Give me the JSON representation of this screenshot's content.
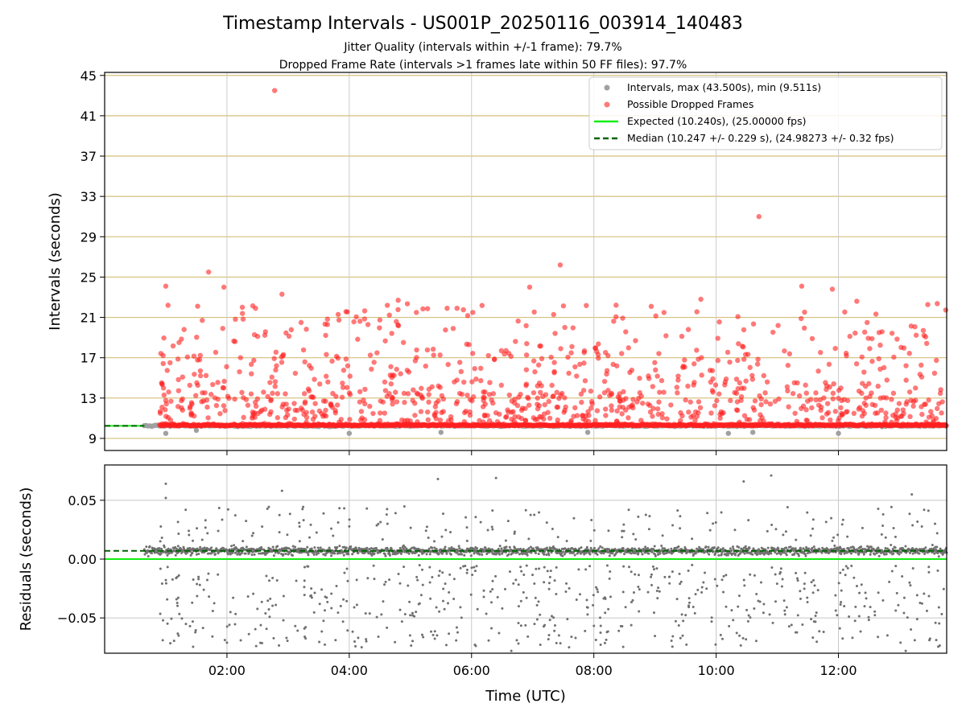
{
  "figure": {
    "title": "Timestamp Intervals - US001P_20250116_003914_140483",
    "subtitle_jitter": "Jitter Quality (intervals within +/-1 frame): 79.7%",
    "subtitle_dropped": "Dropped Frame Rate (intervals >1 frames late within 50 FF files): 97.7%"
  },
  "colors": {
    "intervals": "#a0a0a0",
    "dropped": "#ff2020",
    "expected": "#11ee11",
    "median": "#006400",
    "grid_top": "#d4bf7a",
    "grid_bottom": "#c8c8c8",
    "residuals": "#707070"
  },
  "chart_data": [
    {
      "type": "scatter",
      "panel": "top",
      "xlabel": "",
      "ylabel": "Intervals (seconds)",
      "xlim_hours": [
        0.0,
        13.77
      ],
      "ylim": [
        7.8,
        45.3
      ],
      "y_ticks": [
        "9",
        "13",
        "17",
        "21",
        "25",
        "29",
        "33",
        "37",
        "41",
        "45"
      ],
      "grid": true,
      "legend_position": "top-right",
      "legend": [
        {
          "label": "Intervals, max (43.500s), min (9.511s)",
          "marker": "circle",
          "color": "#a0a0a0"
        },
        {
          "label": "Possible Dropped Frames",
          "marker": "circle",
          "color": "#ff2020"
        },
        {
          "label": "Expected (10.240s), (25.00000 fps)",
          "marker": "line",
          "color": "#11ee11"
        },
        {
          "label": "Median (10.247 +/- 0.229 s), (24.98273 +/- 0.32 fps)",
          "marker": "dashed",
          "color": "#006400"
        }
      ],
      "expected_line": 10.24,
      "median_line": 10.247,
      "intervals_series": {
        "name": "Intervals, max (43.500s), min (9.511s)",
        "baseline": 10.25,
        "x_range_hours": [
          0.65,
          13.77
        ],
        "low_outliers": [
          {
            "x": 1.0,
            "y": 9.5
          },
          {
            "x": 1.5,
            "y": 9.8
          },
          {
            "x": 4.0,
            "y": 9.5
          },
          {
            "x": 5.5,
            "y": 9.6
          },
          {
            "x": 7.9,
            "y": 9.6
          },
          {
            "x": 10.2,
            "y": 9.5
          },
          {
            "x": 10.6,
            "y": 9.6
          },
          {
            "x": 12.0,
            "y": 9.5
          }
        ]
      },
      "dropped_series": {
        "name": "Possible Dropped Frames",
        "x_range_hours": [
          0.9,
          13.77
        ],
        "notable_points": [
          {
            "x": 2.78,
            "y": 43.5
          },
          {
            "x": 10.7,
            "y": 31.0
          },
          {
            "x": 7.45,
            "y": 26.2
          },
          {
            "x": 1.7,
            "y": 25.5
          },
          {
            "x": 1.0,
            "y": 24.1
          },
          {
            "x": 1.95,
            "y": 24.0
          },
          {
            "x": 6.95,
            "y": 24.0
          },
          {
            "x": 11.4,
            "y": 24.1
          },
          {
            "x": 11.9,
            "y": 23.8
          },
          {
            "x": 2.9,
            "y": 23.3
          },
          {
            "x": 4.8,
            "y": 22.7
          },
          {
            "x": 9.75,
            "y": 22.8
          },
          {
            "x": 12.3,
            "y": 22.6
          }
        ],
        "typical_band": [
          10.5,
          22.5
        ]
      }
    },
    {
      "type": "scatter",
      "panel": "bottom",
      "xlabel": "Time (UTC)",
      "ylabel": "Residuals (seconds)",
      "xlim_hours": [
        0.0,
        13.77
      ],
      "ylim": [
        -0.08,
        0.08
      ],
      "x_ticks": [
        {
          "value": 2,
          "label": "02:00"
        },
        {
          "value": 4,
          "label": "04:00"
        },
        {
          "value": 6,
          "label": "06:00"
        },
        {
          "value": 8,
          "label": "08:00"
        },
        {
          "value": 10,
          "label": "10:00"
        },
        {
          "value": 12,
          "label": "12:00"
        }
      ],
      "y_ticks": [
        {
          "value": 0.05,
          "label": "0.05"
        },
        {
          "value": 0.0,
          "label": "0.00"
        },
        {
          "value": -0.05,
          "label": "−0.05"
        }
      ],
      "grid": true,
      "expected_line": 0.0,
      "median_line": 0.007,
      "residual_series": {
        "name": "Residuals",
        "x_range_hours": [
          0.65,
          13.77
        ],
        "center": 0.007,
        "notable_points": [
          {
            "x": 1.0,
            "y": 0.064
          },
          {
            "x": 1.0,
            "y": 0.052
          },
          {
            "x": 2.9,
            "y": 0.058
          },
          {
            "x": 5.45,
            "y": 0.068
          },
          {
            "x": 6.4,
            "y": 0.069
          },
          {
            "x": 10.45,
            "y": 0.066
          },
          {
            "x": 10.9,
            "y": 0.071
          },
          {
            "x": 13.2,
            "y": 0.055
          },
          {
            "x": 0.95,
            "y": -0.069
          },
          {
            "x": 2.0,
            "y": -0.071
          },
          {
            "x": 6.65,
            "y": -0.078
          },
          {
            "x": 13.1,
            "y": -0.078
          }
        ]
      }
    }
  ]
}
